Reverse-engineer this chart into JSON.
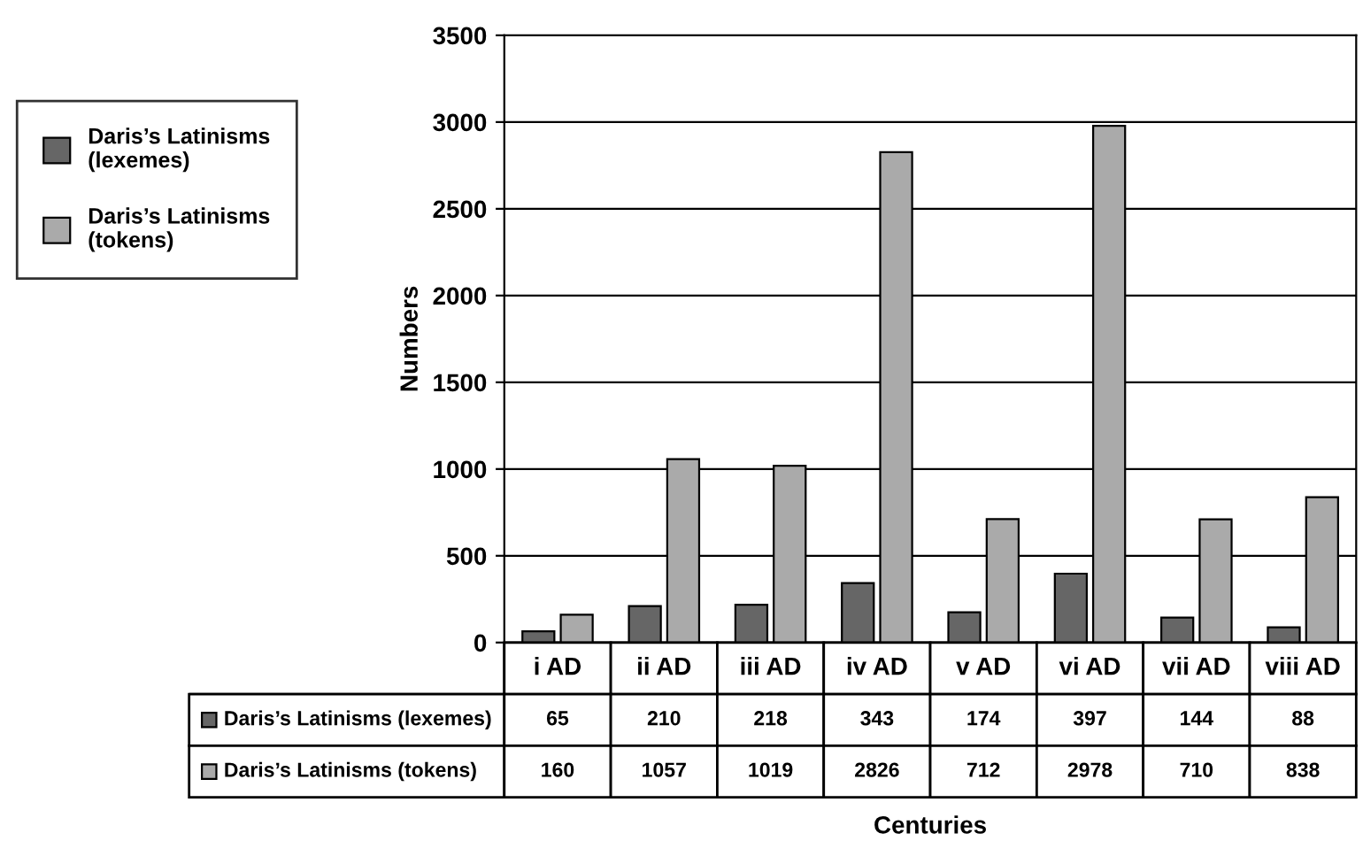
{
  "chart_data": {
    "type": "bar",
    "annotations": [
      "Centuries"
    ],
    "ylabel": "Numbers",
    "categories": [
      "i AD",
      "ii AD",
      "iii AD",
      "iv AD",
      "v AD",
      "vi AD",
      "vii AD",
      "viii AD"
    ],
    "series": [
      {
        "name": "Daris’s Latinisms (lexemes)",
        "color": "#666666",
        "values": [
          65,
          210,
          218,
          343,
          174,
          397,
          144,
          88
        ]
      },
      {
        "name": "Daris’s Latinisms (tokens)",
        "color": "#aaaaaa",
        "values": [
          160,
          1057,
          1019,
          2826,
          712,
          2978,
          710,
          838
        ]
      }
    ],
    "ylim": [
      0,
      3500
    ],
    "yticks": [
      0,
      500,
      1000,
      1500,
      2000,
      2500,
      3000,
      3500
    ],
    "grid": "y",
    "legend": "left",
    "data_labels": true
  }
}
